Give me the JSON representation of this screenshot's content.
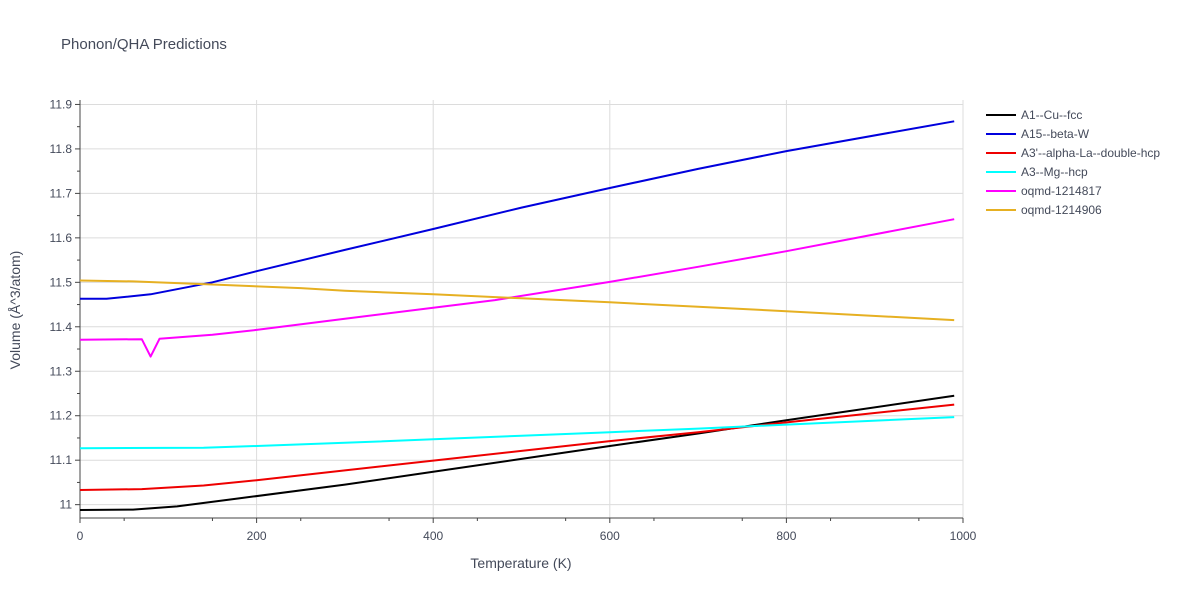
{
  "chart_data": {
    "type": "line",
    "title": "Phonon/QHA Predictions",
    "xlabel": "Temperature (K)",
    "ylabel": "Volume (Å^3/atom)",
    "xlim": [
      0,
      1000
    ],
    "ylim": [
      10.97,
      11.91
    ],
    "xticks": [
      0,
      200,
      400,
      600,
      800,
      1000
    ],
    "xtick_labels": [
      "0",
      "200",
      "400",
      "600",
      "800",
      "1000"
    ],
    "yticks": [
      11.0,
      11.1,
      11.2,
      11.3,
      11.4,
      11.5,
      11.6,
      11.7,
      11.8,
      11.9
    ],
    "ytick_labels": [
      "11",
      "11.1",
      "11.2",
      "11.3",
      "11.4",
      "11.5",
      "11.6",
      "11.7",
      "11.8",
      "11.9"
    ],
    "grid": true,
    "legend_position": "top-right",
    "series": [
      {
        "name": "A1--Cu--fcc",
        "color": "#000000",
        "x": [
          0,
          60,
          110,
          180,
          300,
          400,
          500,
          600,
          700,
          800,
          990
        ],
        "y": [
          10.988,
          10.989,
          10.996,
          11.014,
          11.045,
          11.074,
          11.103,
          11.132,
          11.16,
          11.19,
          11.245
        ]
      },
      {
        "name": "A15--beta-W",
        "color": "#0000dd",
        "x": [
          0,
          30,
          80,
          150,
          200,
          300,
          400,
          500,
          600,
          700,
          800,
          990
        ],
        "y": [
          11.463,
          11.463,
          11.473,
          11.5,
          11.525,
          11.573,
          11.62,
          11.668,
          11.712,
          11.755,
          11.795,
          11.862
        ]
      },
      {
        "name": "A3'--alpha-La--double-hcp",
        "color": "#ee0000",
        "x": [
          0,
          70,
          140,
          200,
          300,
          400,
          500,
          600,
          700,
          800,
          990
        ],
        "y": [
          11.033,
          11.035,
          11.043,
          11.055,
          11.077,
          11.099,
          11.121,
          11.143,
          11.163,
          11.185,
          11.225
        ]
      },
      {
        "name": "A3--Mg--hcp",
        "color": "#00ffff",
        "x": [
          0,
          140,
          200,
          300,
          400,
          500,
          600,
          700,
          800,
          990
        ],
        "y": [
          11.127,
          11.128,
          11.132,
          11.139,
          11.147,
          11.155,
          11.163,
          11.171,
          11.18,
          11.197
        ]
      },
      {
        "name": "oqmd-1214817",
        "color": "#ff00ff",
        "x": [
          0,
          70,
          80,
          90,
          150,
          200,
          300,
          400,
          470,
          600,
          700,
          800,
          990
        ],
        "y": [
          11.371,
          11.372,
          11.333,
          11.373,
          11.382,
          11.393,
          11.418,
          11.443,
          11.46,
          11.501,
          11.535,
          11.57,
          11.642
        ]
      },
      {
        "name": "oqmd-1214906",
        "color": "#e6b022",
        "x": [
          0,
          60,
          150,
          250,
          300,
          400,
          500,
          600,
          700,
          800,
          990
        ],
        "y": [
          11.504,
          11.502,
          11.495,
          11.487,
          11.481,
          11.473,
          11.464,
          11.455,
          11.445,
          11.435,
          11.415
        ]
      }
    ]
  }
}
